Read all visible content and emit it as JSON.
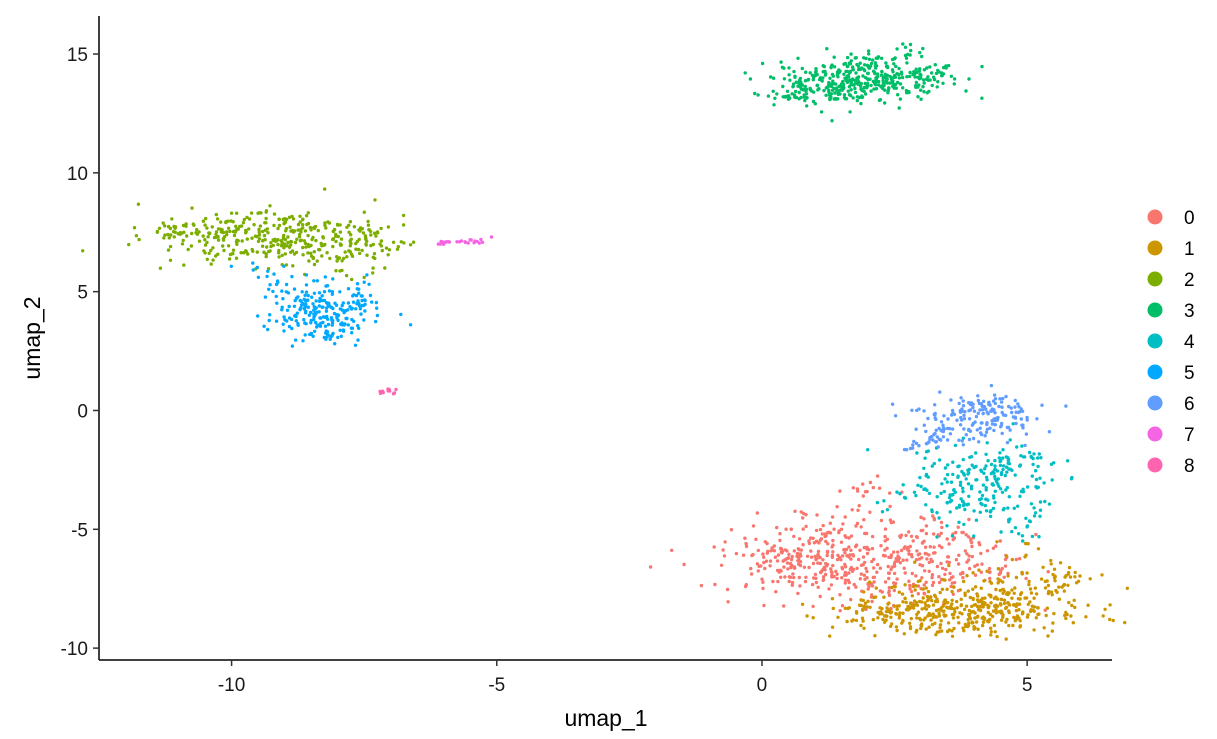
{
  "chart_data": {
    "type": "scatter",
    "title": "",
    "xlabel": "umap_1",
    "ylabel": "umap_2",
    "xlim": [
      -12.5,
      6.6
    ],
    "ylim": [
      -10.5,
      16.6
    ],
    "x_ticks": [
      -10,
      -5,
      0,
      5
    ],
    "x_tick_labels": [
      "-10",
      "-5",
      "0",
      "5"
    ],
    "y_ticks": [
      -10,
      -5,
      0,
      5,
      10,
      15
    ],
    "y_tick_labels": [
      "-10",
      "-5",
      "0",
      "5",
      "10",
      "15"
    ],
    "grid": false,
    "legend_position": "right",
    "series": [
      {
        "name": "0",
        "color": "#F8766D",
        "count": 560,
        "center": [
          1.8,
          -6.4
        ],
        "spread": [
          1.35,
          0.8
        ],
        "points": [
          [
            0.0,
            -7.1
          ],
          [
            0.3,
            -7.2
          ],
          [
            0.1,
            -6.0
          ],
          [
            0.5,
            -6.2
          ],
          [
            0.8,
            -6.6
          ],
          [
            1.2,
            -6.9
          ],
          [
            2.0,
            -7.3
          ],
          [
            2.4,
            -7.6
          ],
          [
            3.0,
            -7.5
          ],
          [
            3.6,
            -7.0
          ],
          [
            4.3,
            -6.8
          ],
          [
            4.6,
            -6.1
          ],
          [
            3.0,
            -4.5
          ],
          [
            3.6,
            -5.2
          ],
          [
            1.8,
            -3.3
          ],
          [
            1.9,
            -3.1
          ],
          [
            0.6,
            -5.3
          ],
          [
            1.5,
            -5.0
          ]
        ]
      },
      {
        "name": "1",
        "color": "#CD9600",
        "count": 520,
        "center": [
          3.9,
          -8.3
        ],
        "spread": [
          1.2,
          0.55
        ],
        "points": [
          [
            1.9,
            -8.4
          ],
          [
            2.1,
            -8.8
          ],
          [
            2.8,
            -9.1
          ],
          [
            3.5,
            -9.3
          ],
          [
            4.0,
            -9.2
          ],
          [
            4.6,
            -8.9
          ],
          [
            5.2,
            -8.3
          ],
          [
            5.7,
            -7.6
          ],
          [
            5.9,
            -7.0
          ],
          [
            5.3,
            -6.6
          ],
          [
            5.0,
            -5.6
          ],
          [
            4.3,
            -7.2
          ],
          [
            3.2,
            -8.0
          ],
          [
            2.4,
            -8.4
          ]
        ]
      },
      {
        "name": "2",
        "color": "#7CAE00",
        "count": 420,
        "center": [
          -9.0,
          7.3
        ],
        "spread": [
          1.1,
          0.6
        ],
        "points": [
          [
            -11.4,
            7.5
          ],
          [
            -11.2,
            7.4
          ],
          [
            -10.9,
            7.5
          ],
          [
            -10.5,
            7.8
          ],
          [
            -10.0,
            8.3
          ],
          [
            -9.5,
            8.3
          ],
          [
            -9.0,
            7.9
          ],
          [
            -8.5,
            7.6
          ],
          [
            -8.0,
            7.8
          ],
          [
            -7.6,
            7.6
          ],
          [
            -7.2,
            7.0
          ],
          [
            -6.8,
            7.1
          ],
          [
            -7.3,
            6.4
          ],
          [
            -7.5,
            5.6
          ],
          [
            -8.3,
            6.5
          ],
          [
            -9.0,
            7.0
          ],
          [
            -9.6,
            6.7
          ],
          [
            -10.3,
            6.5
          ]
        ]
      },
      {
        "name": "3",
        "color": "#00BE67",
        "count": 460,
        "center": [
          1.8,
          13.9
        ],
        "spread": [
          0.85,
          0.5
        ],
        "points": [
          [
            0.5,
            13.1
          ],
          [
            0.4,
            13.2
          ],
          [
            0.8,
            13.5
          ],
          [
            1.1,
            14.0
          ],
          [
            1.4,
            13.1
          ],
          [
            1.8,
            13.2
          ],
          [
            2.0,
            14.5
          ],
          [
            2.5,
            14.8
          ],
          [
            2.8,
            15.4
          ],
          [
            3.2,
            14.2
          ],
          [
            3.4,
            14.1
          ],
          [
            2.9,
            13.6
          ],
          [
            2.2,
            13.7
          ]
        ]
      },
      {
        "name": "4",
        "color": "#00BFC4",
        "count": 260,
        "center": [
          4.1,
          -3.0
        ],
        "spread": [
          0.75,
          0.9
        ],
        "points": [
          [
            2.3,
            -3.8
          ],
          [
            2.6,
            -3.5
          ],
          [
            3.0,
            -3.2
          ],
          [
            3.5,
            -2.7
          ],
          [
            4.0,
            -2.4
          ],
          [
            4.5,
            -2.1
          ],
          [
            5.2,
            -2.0
          ],
          [
            5.5,
            -2.2
          ],
          [
            4.9,
            -1.5
          ],
          [
            4.4,
            -3.4
          ],
          [
            3.8,
            -4.0
          ],
          [
            3.3,
            -4.3
          ],
          [
            5.0,
            -4.9
          ],
          [
            5.1,
            -5.3
          ]
        ]
      },
      {
        "name": "5",
        "color": "#00A9FF",
        "count": 260,
        "center": [
          -8.2,
          4.0
        ],
        "spread": [
          0.55,
          0.6
        ],
        "points": [
          [
            -8.8,
            4.0
          ],
          [
            -8.5,
            3.2
          ],
          [
            -8.2,
            3.1
          ],
          [
            -7.8,
            3.6
          ],
          [
            -7.6,
            4.5
          ],
          [
            -7.5,
            5.4
          ],
          [
            -8.1,
            5.0
          ],
          [
            -8.6,
            4.6
          ],
          [
            -9.3,
            5.1
          ],
          [
            -9.6,
            6.2
          ]
        ]
      },
      {
        "name": "6",
        "color": "#619CFF",
        "count": 200,
        "center": [
          4.2,
          -0.3
        ],
        "spread": [
          0.65,
          0.55
        ],
        "points": [
          [
            3.6,
            -0.1
          ],
          [
            3.8,
            0.2
          ],
          [
            4.1,
            0.3
          ],
          [
            4.4,
            0.3
          ],
          [
            4.7,
            0.1
          ],
          [
            5.0,
            -0.3
          ],
          [
            4.4,
            -0.6
          ],
          [
            3.9,
            -0.8
          ],
          [
            3.2,
            -1.1
          ],
          [
            2.8,
            -1.6
          ],
          [
            3.1,
            -1.4
          ]
        ]
      },
      {
        "name": "7",
        "color": "#F564E3",
        "count": 26,
        "center": [
          -5.8,
          7.1
        ],
        "spread": [
          0.35,
          0.05
        ],
        "points": [
          [
            -6.1,
            7.0
          ],
          [
            -5.9,
            7.1
          ],
          [
            -5.6,
            7.1
          ],
          [
            -5.3,
            7.2
          ],
          [
            -5.1,
            7.3
          ]
        ]
      },
      {
        "name": "8",
        "color": "#FF64B0",
        "count": 12,
        "center": [
          -7.05,
          0.8
        ],
        "spread": [
          0.1,
          0.08
        ],
        "points": [
          [
            -7.2,
            0.8
          ],
          [
            -7.05,
            0.9
          ],
          [
            -6.95,
            0.7
          ]
        ]
      }
    ]
  }
}
